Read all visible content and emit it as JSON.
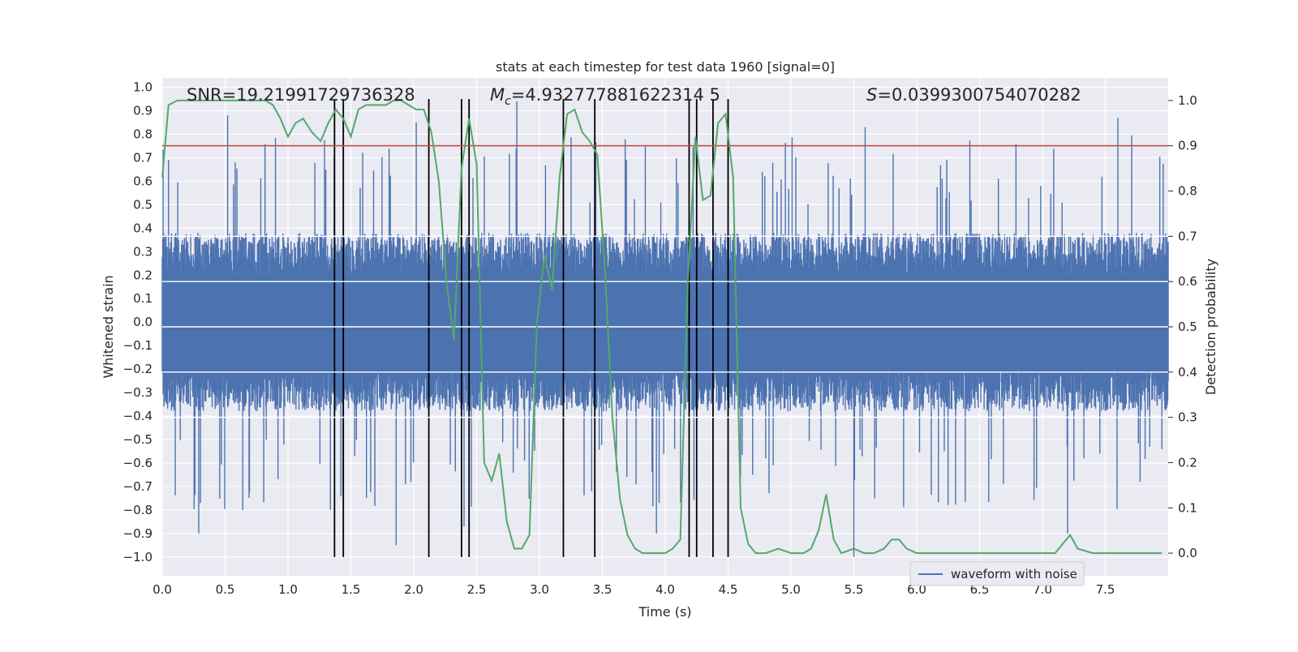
{
  "chart_data": {
    "type": "line",
    "title": "stats at each timestep for test data 1960 [signal=0]",
    "xlabel": "Time (s)",
    "ylabel_left": "Whitened strain",
    "ylabel_right": "Detection probability",
    "xlim": [
      0.0,
      8.0
    ],
    "ylim_left": [
      -1.08,
      1.04
    ],
    "ylim_right": [
      -0.05,
      1.05
    ],
    "grid": true,
    "legend_position": "bottom-right",
    "x_ticks": [
      0.0,
      0.5,
      1.0,
      1.5,
      2.0,
      2.5,
      3.0,
      3.5,
      4.0,
      4.5,
      5.0,
      5.5,
      6.0,
      6.5,
      7.0,
      7.5
    ],
    "x_tick_labels": [
      "0.0",
      "0.5",
      "1.0",
      "1.5",
      "2.0",
      "2.5",
      "3.0",
      "3.5",
      "4.0",
      "4.5",
      "5.0",
      "5.5",
      "6.0",
      "6.5",
      "7.0",
      "7.5"
    ],
    "y_left_ticks": [
      1.0,
      0.9,
      0.8,
      0.7,
      0.6,
      0.5,
      0.4,
      0.3,
      0.2,
      0.1,
      0.0,
      -0.1,
      -0.2,
      -0.3,
      -0.4,
      -0.5,
      -0.6,
      -0.7,
      -0.8,
      -0.9,
      -1.0
    ],
    "y_left_tick_labels": [
      "1.0",
      "0.9",
      "0.8",
      "0.7",
      "0.6",
      "0.5",
      "0.4",
      "0.3",
      "0.2",
      "0.1",
      "0.0",
      "−0.1",
      "−0.2",
      "−0.3",
      "−0.4",
      "−0.5",
      "−0.6",
      "−0.7",
      "−0.8",
      "−0.9",
      "−1.0"
    ],
    "y_right_ticks": [
      1.0,
      0.9,
      0.8,
      0.7,
      0.6,
      0.5,
      0.4,
      0.3,
      0.2,
      0.1,
      0.0
    ],
    "y_right_tick_labels": [
      "1.0",
      "0.9",
      "0.8",
      "0.7",
      "0.6",
      "0.5",
      "0.4",
      "0.3",
      "0.2",
      "0.1",
      "0.0"
    ],
    "annotations": {
      "snr": "SNR=19.21991729736328",
      "mc_symbol": "M",
      "mc_subscript": "c",
      "mc_value": "=4.932777881622314 5",
      "s_symbol": "S",
      "s_value": "=0.0399300754070282"
    },
    "threshold": {
      "value": 0.9,
      "axis": "right",
      "color": "#c44e52"
    },
    "vertical_lines": {
      "x": [
        1.37,
        1.44,
        2.12,
        2.38,
        2.44,
        3.19,
        3.44,
        4.19,
        4.25,
        4.38,
        4.5
      ],
      "y_range": [
        -1.0,
        0.95
      ],
      "color": "#000000"
    },
    "waveform": {
      "name": "waveform with noise",
      "color": "#4c72b0",
      "axis": "left",
      "x_range": [
        0.0,
        8.0
      ],
      "envelope_typical": 0.38,
      "notable_peaks": [
        {
          "x": 0.52,
          "y": 0.88
        },
        {
          "x": 0.29,
          "y": -0.9
        },
        {
          "x": 0.64,
          "y": -0.8
        },
        {
          "x": 1.86,
          "y": -0.95
        },
        {
          "x": 2.02,
          "y": 0.85
        },
        {
          "x": 2.4,
          "y": -0.87
        },
        {
          "x": 2.82,
          "y": 0.94
        },
        {
          "x": 3.93,
          "y": -0.9
        },
        {
          "x": 5.5,
          "y": -1.0
        },
        {
          "x": 5.59,
          "y": 0.83
        },
        {
          "x": 7.2,
          "y": -0.9
        },
        {
          "x": 7.6,
          "y": 0.87
        }
      ]
    },
    "detection_probability": {
      "color": "#55a868",
      "axis": "right",
      "x": [
        0.0,
        0.05,
        0.12,
        0.2,
        0.3,
        0.4,
        0.5,
        0.6,
        0.7,
        0.82,
        0.88,
        0.94,
        1.0,
        1.06,
        1.12,
        1.19,
        1.26,
        1.32,
        1.38,
        1.44,
        1.5,
        1.56,
        1.62,
        1.7,
        1.78,
        1.84,
        1.9,
        1.96,
        2.02,
        2.08,
        2.14,
        2.2,
        2.26,
        2.32,
        2.38,
        2.44,
        2.5,
        2.56,
        2.62,
        2.68,
        2.74,
        2.8,
        2.86,
        2.92,
        2.98,
        3.04,
        3.1,
        3.16,
        3.22,
        3.28,
        3.34,
        3.4,
        3.46,
        3.52,
        3.58,
        3.64,
        3.7,
        3.76,
        3.82,
        3.88,
        3.94,
        4.0,
        4.06,
        4.12,
        4.18,
        4.24,
        4.3,
        4.36,
        4.42,
        4.48,
        4.54,
        4.6,
        4.66,
        4.72,
        4.8,
        4.9,
        5.0,
        5.1,
        5.16,
        5.22,
        5.28,
        5.34,
        5.4,
        5.5,
        5.58,
        5.66,
        5.74,
        5.8,
        5.86,
        5.92,
        6.0,
        6.2,
        6.4,
        6.6,
        6.8,
        6.9,
        7.0,
        7.1,
        7.16,
        7.22,
        7.28,
        7.4,
        7.6,
        7.8,
        7.95
      ],
      "y": [
        0.83,
        0.99,
        1.0,
        1.0,
        1.0,
        1.0,
        1.0,
        1.0,
        1.0,
        1.0,
        0.99,
        0.96,
        0.92,
        0.95,
        0.96,
        0.93,
        0.91,
        0.95,
        0.98,
        0.96,
        0.92,
        0.98,
        0.99,
        0.99,
        0.99,
        1.0,
        1.0,
        0.99,
        0.98,
        0.98,
        0.93,
        0.82,
        0.6,
        0.47,
        0.85,
        0.96,
        0.86,
        0.2,
        0.16,
        0.22,
        0.07,
        0.01,
        0.01,
        0.04,
        0.51,
        0.66,
        0.58,
        0.83,
        0.97,
        0.98,
        0.93,
        0.91,
        0.88,
        0.63,
        0.3,
        0.12,
        0.04,
        0.01,
        0.0,
        0.0,
        0.0,
        0.0,
        0.01,
        0.03,
        0.6,
        0.92,
        0.78,
        0.79,
        0.95,
        0.97,
        0.83,
        0.1,
        0.02,
        0.0,
        0.0,
        0.01,
        0.0,
        0.0,
        0.01,
        0.05,
        0.13,
        0.03,
        0.0,
        0.01,
        0.0,
        0.0,
        0.01,
        0.03,
        0.03,
        0.01,
        0.0,
        0.0,
        0.0,
        0.0,
        0.0,
        0.0,
        0.0,
        0.0,
        0.02,
        0.04,
        0.01,
        0.0,
        0.0,
        0.0,
        0.0
      ]
    }
  }
}
